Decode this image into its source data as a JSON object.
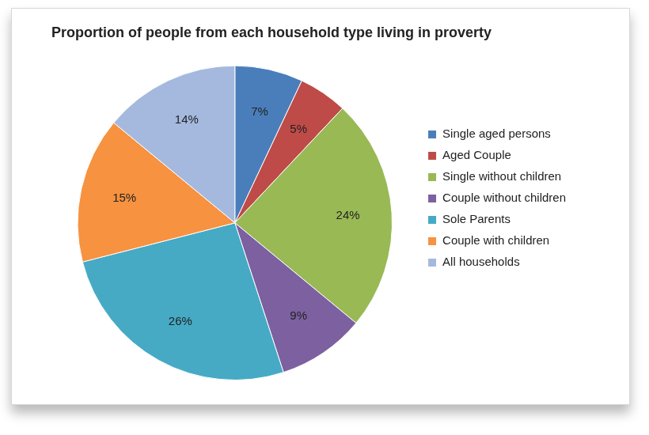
{
  "chart_data": {
    "type": "pie",
    "title": "Proportion of people from each household type living in proverty",
    "categories": [
      "Single aged persons",
      "Aged Couple",
      "Single without children",
      "Couple without children",
      "Sole Parents",
      "Couple with children",
      "All households"
    ],
    "values": [
      7,
      5,
      24,
      9,
      26,
      15,
      14
    ],
    "value_labels": [
      "7%",
      "5%",
      "24%",
      "9%",
      "26%",
      "15%",
      "14%"
    ],
    "colors": [
      "#4a7ebb",
      "#be4b48",
      "#98b954",
      "#7d60a0",
      "#46aac5",
      "#f69240",
      "#a5b9de"
    ],
    "data_labels": true,
    "legend": "right"
  }
}
